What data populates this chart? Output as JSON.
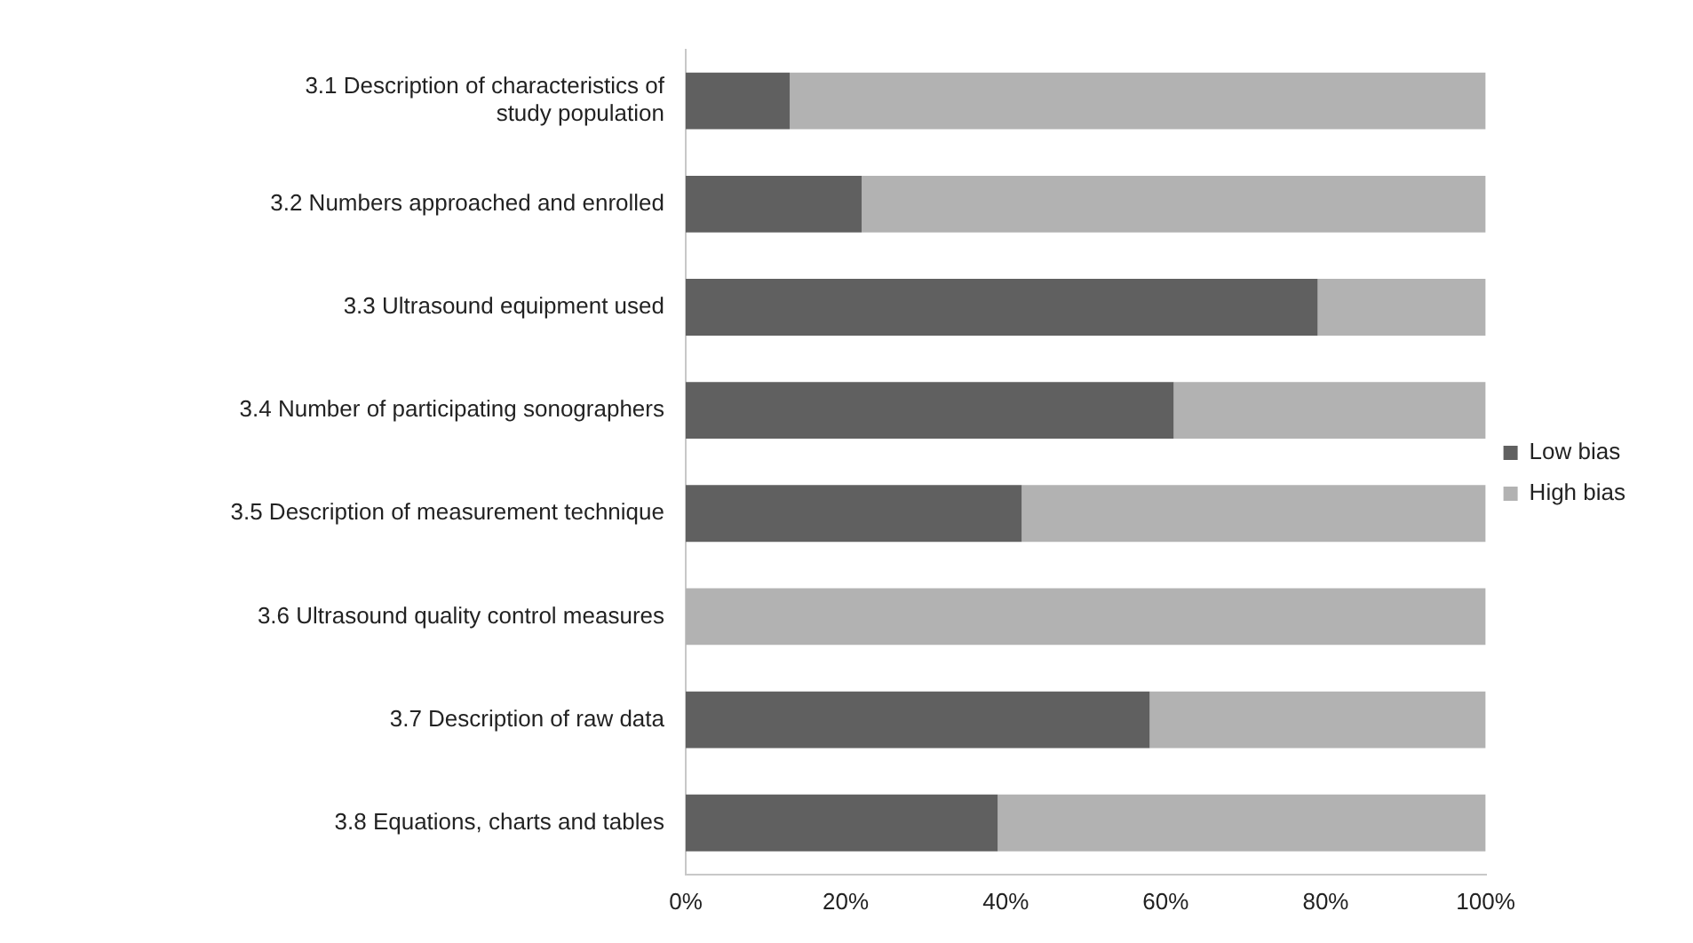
{
  "chart_data": {
    "type": "bar",
    "orientation": "horizontal",
    "stacked": true,
    "categories": [
      "3.1 Description of characteristics of study population",
      "3.2 Numbers approached and enrolled",
      "3.3 Ultrasound equipment used",
      "3.4 Number of participating sonographers",
      "3.5 Description of measurement technique",
      "3.6 Ultrasound quality control measures",
      "3.7 Description of raw data",
      "3.8 Equations, charts and tables"
    ],
    "series": [
      {
        "name": "Low bias",
        "color": "#606060",
        "values": [
          13,
          22,
          79,
          61,
          42,
          0,
          58,
          39
        ]
      },
      {
        "name": "High bias",
        "color": "#b2b2b2",
        "values": [
          87,
          78,
          21,
          39,
          58,
          100,
          42,
          61
        ]
      }
    ],
    "xlim": [
      0,
      100
    ],
    "xticks": [
      {
        "value": 0,
        "label": "0%"
      },
      {
        "value": 20,
        "label": "20%"
      },
      {
        "value": 40,
        "label": "40%"
      },
      {
        "value": 60,
        "label": "60%"
      },
      {
        "value": 80,
        "label": "80%"
      },
      {
        "value": 100,
        "label": "100%"
      }
    ],
    "legend": "right",
    "grid": false
  }
}
